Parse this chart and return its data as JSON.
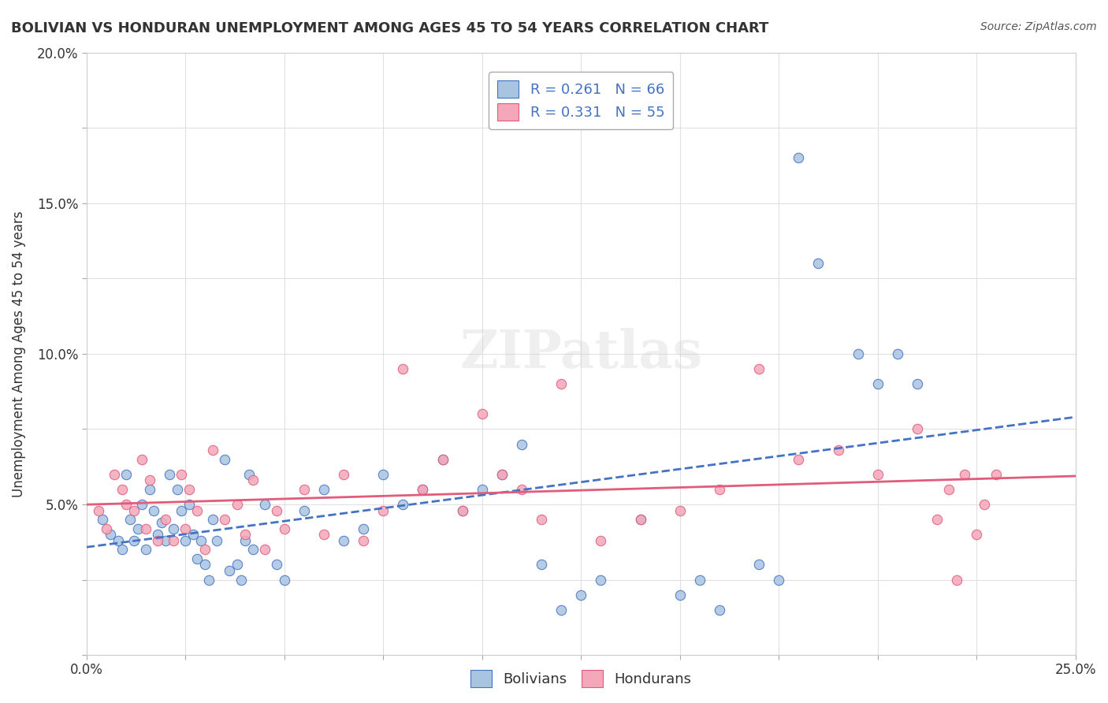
{
  "title": "BOLIVIAN VS HONDURAN UNEMPLOYMENT AMONG AGES 45 TO 54 YEARS CORRELATION CHART",
  "source": "Source: ZipAtlas.com",
  "ylabel": "Unemployment Among Ages 45 to 54 years",
  "xlabel": "",
  "xlim": [
    0.0,
    0.25
  ],
  "ylim": [
    0.0,
    0.2
  ],
  "xticks": [
    0.0,
    0.025,
    0.05,
    0.075,
    0.1,
    0.125,
    0.15,
    0.175,
    0.2,
    0.225,
    0.25
  ],
  "yticks": [
    0.0,
    0.025,
    0.05,
    0.075,
    0.1,
    0.125,
    0.15,
    0.175,
    0.2
  ],
  "xtick_labels": [
    "0.0%",
    "",
    "",
    "",
    "",
    "",
    "",
    "",
    "",
    "",
    "25.0%"
  ],
  "ytick_labels": [
    "",
    "",
    "5.0%",
    "",
    "10.0%",
    "",
    "15.0%",
    "",
    "20.0%"
  ],
  "bolivians_color": "#a8c4e0",
  "hondurans_color": "#f4a7b9",
  "trendline_bolivians_color": "#4472c4",
  "trendline_hondurans_color": "#e05c7a",
  "legend_R_N_color": "#4472c4",
  "bolivians_R": 0.261,
  "bolivians_N": 66,
  "hondurans_R": 0.331,
  "hondurans_N": 55,
  "bolivians_x": [
    0.004,
    0.006,
    0.008,
    0.009,
    0.01,
    0.011,
    0.012,
    0.013,
    0.014,
    0.015,
    0.016,
    0.017,
    0.018,
    0.019,
    0.02,
    0.021,
    0.022,
    0.023,
    0.024,
    0.025,
    0.026,
    0.027,
    0.028,
    0.029,
    0.03,
    0.031,
    0.032,
    0.033,
    0.035,
    0.036,
    0.038,
    0.039,
    0.04,
    0.041,
    0.042,
    0.045,
    0.048,
    0.05,
    0.055,
    0.06,
    0.065,
    0.07,
    0.075,
    0.08,
    0.085,
    0.09,
    0.095,
    0.1,
    0.105,
    0.11,
    0.115,
    0.12,
    0.125,
    0.13,
    0.14,
    0.15,
    0.155,
    0.16,
    0.17,
    0.175,
    0.18,
    0.185,
    0.195,
    0.2,
    0.205,
    0.21
  ],
  "bolivians_y": [
    0.045,
    0.04,
    0.038,
    0.035,
    0.06,
    0.045,
    0.038,
    0.042,
    0.05,
    0.035,
    0.055,
    0.048,
    0.04,
    0.044,
    0.038,
    0.06,
    0.042,
    0.055,
    0.048,
    0.038,
    0.05,
    0.04,
    0.032,
    0.038,
    0.03,
    0.025,
    0.045,
    0.038,
    0.065,
    0.028,
    0.03,
    0.025,
    0.038,
    0.06,
    0.035,
    0.05,
    0.03,
    0.025,
    0.048,
    0.055,
    0.038,
    0.042,
    0.06,
    0.05,
    0.055,
    0.065,
    0.048,
    0.055,
    0.06,
    0.07,
    0.03,
    0.015,
    0.02,
    0.025,
    0.045,
    0.02,
    0.025,
    0.015,
    0.03,
    0.025,
    0.165,
    0.13,
    0.1,
    0.09,
    0.1,
    0.09
  ],
  "hondurans_x": [
    0.003,
    0.005,
    0.007,
    0.009,
    0.01,
    0.012,
    0.014,
    0.015,
    0.016,
    0.018,
    0.02,
    0.022,
    0.024,
    0.025,
    0.026,
    0.028,
    0.03,
    0.032,
    0.035,
    0.038,
    0.04,
    0.042,
    0.045,
    0.048,
    0.05,
    0.055,
    0.06,
    0.065,
    0.07,
    0.075,
    0.08,
    0.085,
    0.09,
    0.095,
    0.1,
    0.105,
    0.11,
    0.115,
    0.12,
    0.13,
    0.14,
    0.15,
    0.16,
    0.17,
    0.18,
    0.19,
    0.2,
    0.21,
    0.215,
    0.218,
    0.22,
    0.222,
    0.225,
    0.227,
    0.23
  ],
  "hondurans_y": [
    0.048,
    0.042,
    0.06,
    0.055,
    0.05,
    0.048,
    0.065,
    0.042,
    0.058,
    0.038,
    0.045,
    0.038,
    0.06,
    0.042,
    0.055,
    0.048,
    0.035,
    0.068,
    0.045,
    0.05,
    0.04,
    0.058,
    0.035,
    0.048,
    0.042,
    0.055,
    0.04,
    0.06,
    0.038,
    0.048,
    0.095,
    0.055,
    0.065,
    0.048,
    0.08,
    0.06,
    0.055,
    0.045,
    0.09,
    0.038,
    0.045,
    0.048,
    0.055,
    0.095,
    0.065,
    0.068,
    0.06,
    0.075,
    0.045,
    0.055,
    0.025,
    0.06,
    0.04,
    0.05,
    0.06
  ],
  "watermark": "ZIPatlas",
  "background_color": "#ffffff",
  "grid_color": "#e0e0e0"
}
